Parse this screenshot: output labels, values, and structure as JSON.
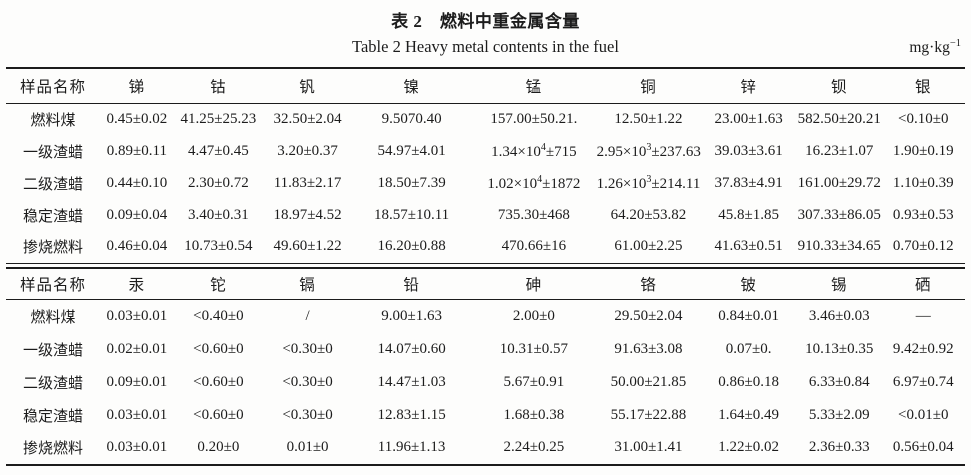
{
  "page": {
    "title_zh": "表 2　燃料中重金属含量",
    "title_en": "Table 2  Heavy metal contents in the fuel",
    "unit_base": "mg·kg",
    "unit_exp": "−1"
  },
  "colors": {
    "text": "#1c1c1c",
    "background": "#fdfdfc",
    "rule": "#1c1c1c"
  },
  "tables": [
    {
      "headers": [
        "样品名称",
        "锑",
        "钴",
        "钒",
        "镍",
        "锰",
        "铜",
        "锌",
        "钡",
        "银"
      ],
      "rows": [
        {
          "name": "燃料煤",
          "values": [
            "0.45±0.02",
            "41.25±25.23",
            "32.50±2.04",
            "9.5070.40",
            "157.00±50.21.",
            "12.50±1.22",
            "23.00±1.63",
            "582.50±20.21",
            "<0.10±0"
          ]
        },
        {
          "name": "一级渣蜡",
          "values": [
            "0.89±0.11",
            "4.47±0.45",
            "3.20±0.37",
            "54.97±4.01",
            "1.34×10^4±715",
            "2.95×10^3±237.63",
            "39.03±3.61",
            "16.23±1.07",
            "1.90±0.19"
          ]
        },
        {
          "name": "二级渣蜡",
          "values": [
            "0.44±0.10",
            "2.30±0.72",
            "11.83±2.17",
            "18.50±7.39",
            "1.02×10^4±1872",
            "1.26×10^3±214.11",
            "37.83±4.91",
            "161.00±29.72",
            "1.10±0.39"
          ]
        },
        {
          "name": "稳定渣蜡",
          "values": [
            "0.09±0.04",
            "3.40±0.31",
            "18.97±4.52",
            "18.57±10.11",
            "735.30±468",
            "64.20±53.82",
            "45.8±1.85",
            "307.33±86.05",
            "0.93±0.53"
          ]
        },
        {
          "name": "掺烧燃料",
          "values": [
            "0.46±0.04",
            "10.73±0.54",
            "49.60±1.22",
            "16.20±0.88",
            "470.66±16",
            "61.00±2.25",
            "41.63±0.51",
            "910.33±34.65",
            "0.70±0.12"
          ]
        }
      ]
    },
    {
      "headers": [
        "样品名称",
        "汞",
        "铊",
        "镉",
        "铅",
        "砷",
        "铬",
        "铍",
        "锡",
        "硒"
      ],
      "rows": [
        {
          "name": "燃料煤",
          "values": [
            "0.03±0.01",
            "<0.40±0",
            "/",
            "9.00±1.63",
            "2.00±0",
            "29.50±2.04",
            "0.84±0.01",
            "3.46±0.03",
            "—"
          ]
        },
        {
          "name": "一级渣蜡",
          "values": [
            "0.02±0.01",
            "<0.60±0",
            "<0.30±0",
            "14.07±0.60",
            "10.31±0.57",
            "91.63±3.08",
            "0.07±0.",
            "10.13±0.35",
            "9.42±0.92"
          ]
        },
        {
          "name": "二级渣蜡",
          "values": [
            "0.09±0.01",
            "<0.60±0",
            "<0.30±0",
            "14.47±1.03",
            "5.67±0.91",
            "50.00±21.85",
            "0.86±0.18",
            "6.33±0.84",
            "6.97±0.74"
          ]
        },
        {
          "name": "稳定渣蜡",
          "values": [
            "0.03±0.01",
            "<0.60±0",
            "<0.30±0",
            "12.83±1.15",
            "1.68±0.38",
            "55.17±22.88",
            "1.64±0.49",
            "5.33±2.09",
            "<0.01±0"
          ]
        },
        {
          "name": "掺烧燃料",
          "values": [
            "0.03±0.01",
            "0.20±0",
            "0.01±0",
            "11.96±1.13",
            "2.24±0.25",
            "31.00±1.41",
            "1.22±0.02",
            "2.36±0.33",
            "0.56±0.04"
          ]
        }
      ]
    }
  ]
}
